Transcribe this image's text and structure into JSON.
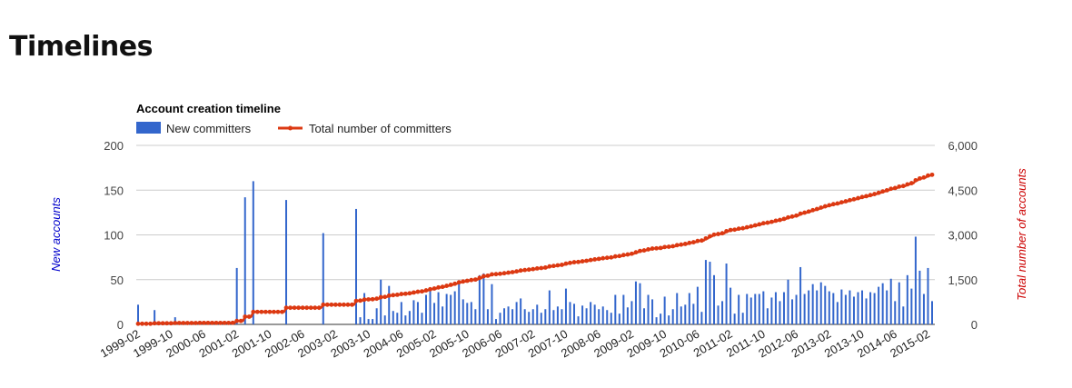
{
  "page_title": "Timelines",
  "chart_data": {
    "type": "bar+line",
    "title": "Account creation timeline",
    "legend_position": "top-left",
    "legend": {
      "bar": "New committers",
      "line": "Total number of committers"
    },
    "y_left": {
      "label": "New accounts",
      "range": [
        0,
        200
      ],
      "ticks": [
        "200",
        "150",
        "100",
        "50",
        "0"
      ]
    },
    "y_right": {
      "label": "Total number of accounts",
      "range": [
        0,
        6000
      ],
      "ticks": [
        "6,000",
        "4,500",
        "3,000",
        "1,500",
        "0"
      ]
    },
    "x_ticks": [
      "1999-02",
      "1999-10",
      "2000-06",
      "2001-02",
      "2001-10",
      "2002-06",
      "2003-02",
      "2003-10",
      "2004-06",
      "2005-02",
      "2005-10",
      "2006-06",
      "2007-02",
      "2007-10",
      "2008-06",
      "2009-02",
      "2009-10",
      "2010-06",
      "2011-02",
      "2011-10",
      "2012-06",
      "2013-02",
      "2013-10",
      "2014-06",
      "2015-02"
    ],
    "start": "1999-02",
    "grid": true,
    "colors": {
      "bar": "#3366cc",
      "line": "#dc3912",
      "left_axis_label": "#0000cc",
      "right_axis_label": "#cc0000"
    },
    "new_committers": [
      22,
      0,
      0,
      0,
      0,
      0,
      0,
      0,
      16,
      0,
      0,
      0,
      0,
      0,
      0,
      0,
      0,
      0,
      8,
      0,
      0,
      0,
      0,
      0,
      0,
      0,
      0,
      0,
      0,
      0,
      4,
      0,
      0,
      0,
      0,
      0,
      0,
      0,
      0,
      0,
      0,
      0,
      0,
      0,
      0,
      0,
      4,
      0,
      63,
      0,
      0,
      0,
      142,
      0,
      0,
      0,
      160,
      0,
      0,
      0,
      0,
      0,
      0,
      0,
      0,
      0,
      0,
      0,
      0,
      0,
      0,
      0,
      139,
      0,
      0,
      0,
      0,
      0,
      0,
      0,
      0,
      0,
      0,
      0,
      0,
      0,
      0,
      0,
      0,
      0,
      102,
      0,
      0,
      0,
      0,
      0,
      0,
      0,
      0,
      0,
      0,
      0,
      0,
      0,
      0,
      0,
      129,
      0,
      8,
      0,
      35,
      0,
      6,
      0,
      6,
      0,
      18,
      0,
      50,
      0,
      10,
      0,
      43,
      0,
      15,
      0,
      13,
      0,
      25,
      0,
      10,
      0,
      15,
      0,
      27,
      0,
      25,
      0,
      13,
      0,
      33,
      0,
      38,
      0,
      24,
      0,
      36,
      0,
      20,
      0,
      34,
      0,
      33,
      0,
      37,
      0,
      47,
      0,
      28,
      0,
      24,
      0,
      25,
      0,
      17,
      0,
      55,
      0,
      57,
      0,
      17,
      0,
      45,
      0,
      6,
      0,
      13,
      0,
      18,
      0,
      20,
      0,
      17,
      0,
      25,
      0,
      29,
      0,
      17,
      0,
      14,
      0,
      17,
      0,
      22,
      0,
      13,
      0,
      17,
      0,
      38,
      0,
      16,
      0,
      20,
      0,
      17,
      0,
      40,
      0,
      25,
      0,
      23,
      0,
      9,
      0,
      21,
      0,
      18,
      0,
      25,
      0,
      22,
      0,
      17,
      0,
      20,
      0,
      16,
      0,
      13,
      0,
      33,
      0,
      12,
      0,
      33,
      0,
      19,
      0,
      26,
      0,
      48,
      0,
      46,
      0,
      18,
      0,
      33,
      0,
      28,
      0,
      8,
      0,
      12,
      0,
      31,
      0,
      10,
      0,
      17,
      0,
      35,
      0,
      20,
      0,
      22,
      0,
      35,
      0,
      23,
      0,
      42,
      0,
      14,
      0,
      72,
      0,
      70,
      0,
      55,
      0,
      21,
      0,
      26,
      0,
      68,
      0,
      41,
      0,
      12,
      0,
      33,
      0,
      13,
      0,
      34,
      0,
      30,
      0,
      34,
      0,
      34,
      0,
      37,
      0,
      18,
      0,
      30,
      0,
      36,
      0,
      26,
      0,
      36,
      0,
      50,
      0,
      28,
      0,
      33,
      0,
      64,
      0,
      34,
      0,
      38,
      0,
      45,
      0,
      38,
      0,
      47,
      0,
      43,
      0,
      37,
      0,
      35,
      0,
      25,
      0,
      39,
      0,
      33,
      0,
      38,
      0,
      31,
      0,
      36,
      0,
      38,
      0,
      29,
      0,
      36,
      0,
      35,
      0,
      42,
      0,
      46,
      0,
      38,
      0,
      51,
      0,
      26,
      0,
      47,
      0,
      20,
      0,
      55,
      0,
      40,
      0,
      98,
      0,
      60,
      0,
      34,
      0,
      63,
      0,
      26
    ],
    "total_committers": [
      22,
      22,
      22,
      22,
      22,
      22,
      22,
      22,
      38,
      38,
      38,
      38,
      38,
      38,
      38,
      38,
      38,
      38,
      46,
      46,
      46,
      46,
      46,
      46,
      46,
      46,
      46,
      46,
      46,
      46,
      50,
      50,
      50,
      50,
      50,
      50,
      50,
      50,
      50,
      50,
      50,
      50,
      50,
      50,
      50,
      50,
      54,
      54,
      117,
      117,
      117,
      117,
      259,
      259,
      259,
      259,
      419,
      419,
      419,
      419,
      419,
      419,
      419,
      419,
      419,
      419,
      419,
      419,
      419,
      419,
      419,
      419,
      558,
      558,
      558,
      558,
      558,
      558,
      558,
      558,
      558,
      558,
      558,
      558,
      558,
      558,
      558,
      558,
      558,
      558,
      660,
      660,
      660,
      660,
      660,
      660,
      660,
      660,
      660,
      660,
      660,
      660,
      660,
      660,
      660,
      660,
      789,
      789,
      797,
      797,
      832,
      832,
      838,
      838,
      844,
      844,
      862,
      862,
      912,
      912,
      922,
      922,
      965,
      965,
      980,
      980,
      993,
      993,
      1018,
      1018,
      1028,
      1028,
      1043,
      1043,
      1070,
      1070,
      1095,
      1095,
      1108,
      1108,
      1141,
      1141,
      1179,
      1179,
      1203,
      1203,
      1239,
      1239,
      1259,
      1259,
      1293,
      1293,
      1326,
      1326,
      1363,
      1363,
      1410,
      1410,
      1438,
      1438,
      1462,
      1462,
      1487,
      1487,
      1504,
      1504,
      1559,
      1559,
      1616,
      1616,
      1633,
      1633,
      1678,
      1678,
      1684,
      1684,
      1697,
      1697,
      1715,
      1715,
      1735,
      1735,
      1752,
      1752,
      1777,
      1777,
      1806,
      1806,
      1823,
      1823,
      1837,
      1837,
      1854,
      1854,
      1876,
      1876,
      1889,
      1889,
      1906,
      1906,
      1944,
      1944,
      1960,
      1960,
      1980,
      1980,
      1997,
      1997,
      2037,
      2037,
      2062,
      2062,
      2085,
      2085,
      2094,
      2094,
      2115,
      2115,
      2133,
      2133,
      2158,
      2158,
      2180,
      2180,
      2197,
      2197,
      2217,
      2217,
      2233,
      2233,
      2246,
      2246,
      2279,
      2279,
      2291,
      2291,
      2324,
      2324,
      2343,
      2343,
      2369,
      2369,
      2417,
      2417,
      2463,
      2463,
      2481,
      2481,
      2514,
      2514,
      2542,
      2542,
      2550,
      2550,
      2562,
      2562,
      2593,
      2593,
      2603,
      2603,
      2620,
      2620,
      2655,
      2655,
      2675,
      2675,
      2697,
      2697,
      2732,
      2732,
      2755,
      2755,
      2797,
      2797,
      2811,
      2811,
      2883,
      2883,
      2953,
      2953,
      3008,
      3008,
      3029,
      3029,
      3055,
      3055,
      3123,
      3123,
      3164,
      3164,
      3176,
      3176,
      3209,
      3209,
      3222,
      3222,
      3256,
      3256,
      3286,
      3286,
      3320,
      3320,
      3354,
      3354,
      3391,
      3391,
      3409,
      3409,
      3439,
      3439,
      3475,
      3475,
      3501,
      3501,
      3537,
      3537,
      3587,
      3587,
      3615,
      3615,
      3648,
      3648,
      3712,
      3712,
      3746,
      3746,
      3784,
      3784,
      3829,
      3829,
      3867,
      3867,
      3914,
      3914,
      3957,
      3957,
      3994,
      3994,
      4029,
      4029,
      4054,
      4054,
      4093,
      4093,
      4126,
      4126,
      4164,
      4164,
      4195,
      4195,
      4231,
      4231,
      4269,
      4269,
      4298,
      4298,
      4334,
      4334,
      4369,
      4369,
      4411,
      4411,
      4457,
      4457,
      4495,
      4495,
      4546,
      4546,
      4572,
      4572,
      4619,
      4619,
      4639,
      4639,
      4694,
      4694,
      4734,
      4734,
      4832,
      4832,
      4892,
      4892,
      4926,
      4926,
      4989,
      4989,
      5015
    ]
  }
}
